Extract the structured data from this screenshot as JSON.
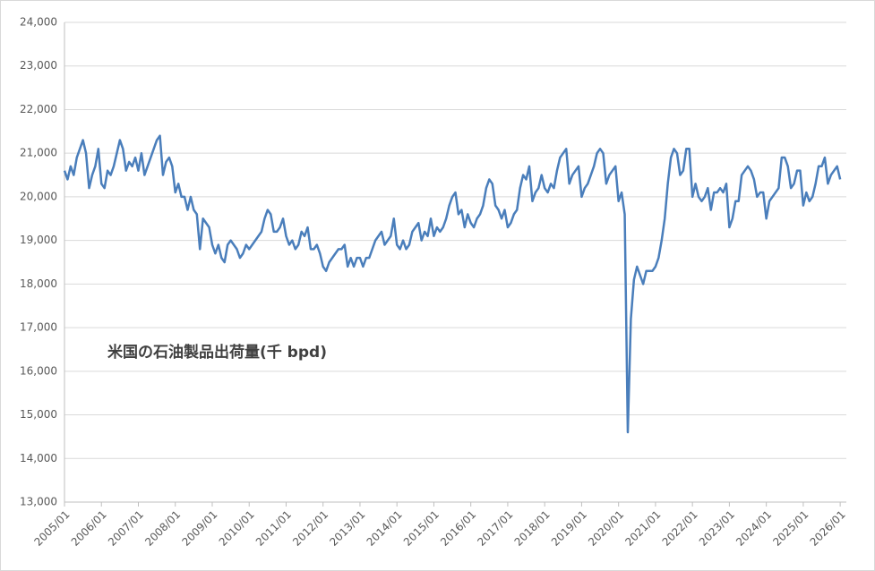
{
  "chart_data": {
    "type": "line",
    "annotation": "米国の石油製品出荷量(千 bpd)",
    "x": [
      "2005/01",
      "2005/02",
      "2005/03",
      "2005/04",
      "2005/05",
      "2005/06",
      "2005/07",
      "2005/08",
      "2005/09",
      "2005/10",
      "2005/11",
      "2005/12",
      "2006/01",
      "2006/02",
      "2006/03",
      "2006/04",
      "2006/05",
      "2006/06",
      "2006/07",
      "2006/08",
      "2006/09",
      "2006/10",
      "2006/11",
      "2006/12",
      "2007/01",
      "2007/02",
      "2007/03",
      "2007/04",
      "2007/05",
      "2007/06",
      "2007/07",
      "2007/08",
      "2007/09",
      "2007/10",
      "2007/11",
      "2007/12",
      "2008/01",
      "2008/02",
      "2008/03",
      "2008/04",
      "2008/05",
      "2008/06",
      "2008/07",
      "2008/08",
      "2008/09",
      "2008/10",
      "2008/11",
      "2008/12",
      "2009/01",
      "2009/02",
      "2009/03",
      "2009/04",
      "2009/05",
      "2009/06",
      "2009/07",
      "2009/08",
      "2009/09",
      "2009/10",
      "2009/11",
      "2009/12",
      "2010/01",
      "2010/02",
      "2010/03",
      "2010/04",
      "2010/05",
      "2010/06",
      "2010/07",
      "2010/08",
      "2010/09",
      "2010/10",
      "2010/11",
      "2010/12",
      "2011/01",
      "2011/02",
      "2011/03",
      "2011/04",
      "2011/05",
      "2011/06",
      "2011/07",
      "2011/08",
      "2011/09",
      "2011/10",
      "2011/11",
      "2011/12",
      "2012/01",
      "2012/02",
      "2012/03",
      "2012/04",
      "2012/05",
      "2012/06",
      "2012/07",
      "2012/08",
      "2012/09",
      "2012/10",
      "2012/11",
      "2012/12",
      "2013/01",
      "2013/02",
      "2013/03",
      "2013/04",
      "2013/05",
      "2013/06",
      "2013/07",
      "2013/08",
      "2013/09",
      "2013/10",
      "2013/11",
      "2013/12",
      "2014/01",
      "2014/02",
      "2014/03",
      "2014/04",
      "2014/05",
      "2014/06",
      "2014/07",
      "2014/08",
      "2014/09",
      "2014/10",
      "2014/11",
      "2014/12",
      "2015/01",
      "2015/02",
      "2015/03",
      "2015/04",
      "2015/05",
      "2015/06",
      "2015/07",
      "2015/08",
      "2015/09",
      "2015/10",
      "2015/11",
      "2015/12",
      "2016/01",
      "2016/02",
      "2016/03",
      "2016/04",
      "2016/05",
      "2016/06",
      "2016/07",
      "2016/08",
      "2016/09",
      "2016/10",
      "2016/11",
      "2016/12",
      "2017/01",
      "2017/02",
      "2017/03",
      "2017/04",
      "2017/05",
      "2017/06",
      "2017/07",
      "2017/08",
      "2017/09",
      "2017/10",
      "2017/11",
      "2017/12",
      "2018/01",
      "2018/02",
      "2018/03",
      "2018/04",
      "2018/05",
      "2018/06",
      "2018/07",
      "2018/08",
      "2018/09",
      "2018/10",
      "2018/11",
      "2018/12",
      "2019/01",
      "2019/02",
      "2019/03",
      "2019/04",
      "2019/05",
      "2019/06",
      "2019/07",
      "2019/08",
      "2019/09",
      "2019/10",
      "2019/11",
      "2019/12",
      "2020/01",
      "2020/02",
      "2020/03",
      "2020/04",
      "2020/05",
      "2020/06",
      "2020/07",
      "2020/08",
      "2020/09",
      "2020/10",
      "2020/11",
      "2020/12",
      "2021/01",
      "2021/02",
      "2021/03",
      "2021/04",
      "2021/05",
      "2021/06",
      "2021/07",
      "2021/08",
      "2021/09",
      "2021/10",
      "2021/11",
      "2021/12",
      "2022/01",
      "2022/02",
      "2022/03",
      "2022/04",
      "2022/05",
      "2022/06",
      "2022/07",
      "2022/08",
      "2022/09",
      "2022/10",
      "2022/11",
      "2022/12",
      "2023/01",
      "2023/02",
      "2023/03",
      "2023/04",
      "2023/05",
      "2023/06",
      "2023/07",
      "2023/08",
      "2023/09",
      "2023/10",
      "2023/11",
      "2023/12",
      "2024/01",
      "2024/02",
      "2024/03",
      "2024/04",
      "2024/05",
      "2024/06",
      "2024/07",
      "2024/08",
      "2024/09",
      "2024/10",
      "2024/11",
      "2024/12",
      "2025/01",
      "2025/02",
      "2025/03",
      "2025/04",
      "2025/05",
      "2025/06",
      "2025/07",
      "2025/08",
      "2025/09",
      "2025/10",
      "2025/11",
      "2025/12",
      "2026/01"
    ],
    "series": [
      {
        "color": "#4a7ebb",
        "values": [
          20600,
          20400,
          20700,
          20500,
          20900,
          21100,
          21300,
          21000,
          20200,
          20500,
          20700,
          21100,
          20300,
          20200,
          20600,
          20500,
          20700,
          21000,
          21300,
          21100,
          20600,
          20800,
          20700,
          20900,
          20600,
          21000,
          20500,
          20700,
          20900,
          21100,
          21300,
          21400,
          20500,
          20800,
          20900,
          20700,
          20100,
          20300,
          20000,
          20000,
          19700,
          20000,
          19700,
          19600,
          18800,
          19500,
          19400,
          19300,
          18900,
          18700,
          18900,
          18600,
          18500,
          18900,
          19000,
          18900,
          18800,
          18600,
          18700,
          18900,
          18800,
          18900,
          19000,
          19100,
          19200,
          19500,
          19700,
          19600,
          19200,
          19200,
          19300,
          19500,
          19100,
          18900,
          19000,
          18800,
          18900,
          19200,
          19100,
          19300,
          18800,
          18800,
          18900,
          18700,
          18400,
          18300,
          18500,
          18600,
          18700,
          18800,
          18800,
          18900,
          18400,
          18600,
          18400,
          18600,
          18600,
          18400,
          18600,
          18600,
          18800,
          19000,
          19100,
          19200,
          18900,
          19000,
          19100,
          19500,
          18900,
          18800,
          19000,
          18800,
          18900,
          19200,
          19300,
          19400,
          19000,
          19200,
          19100,
          19500,
          19100,
          19300,
          19200,
          19300,
          19500,
          19800,
          20000,
          20100,
          19600,
          19700,
          19300,
          19600,
          19400,
          19300,
          19500,
          19600,
          19800,
          20200,
          20400,
          20300,
          19800,
          19700,
          19500,
          19700,
          19300,
          19400,
          19600,
          19700,
          20200,
          20500,
          20400,
          20700,
          19900,
          20100,
          20200,
          20500,
          20200,
          20100,
          20300,
          20200,
          20600,
          20900,
          21000,
          21100,
          20300,
          20500,
          20600,
          20700,
          20000,
          20200,
          20300,
          20500,
          20700,
          21000,
          21100,
          21000,
          20300,
          20500,
          20600,
          20700,
          19900,
          20100,
          19600,
          14600,
          17200,
          18100,
          18400,
          18200,
          18000,
          18300,
          18300,
          18300,
          18400,
          18600,
          19000,
          19500,
          20300,
          20900,
          21100,
          21000,
          20500,
          20600,
          21100,
          21100,
          20000,
          20300,
          20000,
          19900,
          20000,
          20200,
          19700,
          20100,
          20100,
          20200,
          20100,
          20300,
          19300,
          19500,
          19900,
          19900,
          20500,
          20600,
          20700,
          20600,
          20400,
          20000,
          20100,
          20100,
          19500,
          19900,
          20000,
          20100,
          20200,
          20900,
          20900,
          20700,
          20200,
          20300,
          20600,
          20600,
          19800,
          20100,
          19900,
          20000,
          20300,
          20700,
          20700,
          20900,
          20300,
          20500,
          20600,
          20700,
          20400
        ]
      }
    ],
    "xlim": [
      "2005/01",
      "2026/03"
    ],
    "xticks": [
      "2005/01",
      "2006/01",
      "2007/01",
      "2008/01",
      "2009/01",
      "2010/01",
      "2011/01",
      "2012/01",
      "2013/01",
      "2014/01",
      "2015/01",
      "2016/01",
      "2017/01",
      "2018/01",
      "2019/01",
      "2020/01",
      "2021/01",
      "2022/01",
      "2023/01",
      "2024/01",
      "2025/01",
      "2026/01"
    ],
    "ylim": [
      13000,
      24000
    ],
    "yticks": [
      {
        "value": 13000,
        "label": "13,000"
      },
      {
        "value": 14000,
        "label": "14,000"
      },
      {
        "value": 15000,
        "label": "15,000"
      },
      {
        "value": 16000,
        "label": "16,000"
      },
      {
        "value": 17000,
        "label": "17,000"
      },
      {
        "value": 18000,
        "label": "18,000"
      },
      {
        "value": 19000,
        "label": "19,000"
      },
      {
        "value": 20000,
        "label": "20,000"
      },
      {
        "value": 21000,
        "label": "21,000"
      },
      {
        "value": 22000,
        "label": "22,000"
      },
      {
        "value": 23000,
        "label": "23,000"
      },
      {
        "value": 24000,
        "label": "24,000"
      }
    ],
    "grid": true
  }
}
